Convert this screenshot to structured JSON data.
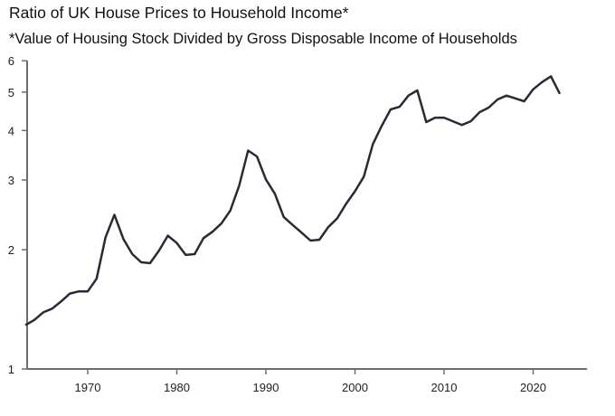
{
  "chart_data": {
    "type": "line",
    "title": "Ratio of UK House Prices to Household Income*",
    "subtitle": "*Value of Housing Stock Divided by Gross Disposable Income of Households",
    "xlabel": "",
    "ylabel": "",
    "yscale": "log",
    "ylim": [
      1,
      6
    ],
    "xlim": [
      1963,
      2025
    ],
    "yticks": [
      "1",
      "2",
      "3",
      "4",
      "5",
      "6"
    ],
    "xticks": [
      "1970",
      "1980",
      "1990",
      "2000",
      "2010",
      "2020"
    ],
    "grid": false,
    "line_color": "#2a2a35",
    "axis_color": "#6e6e6e",
    "series": [
      {
        "name": "Ratio of UK House Prices to Household Income",
        "x": [
          1963,
          1964,
          1965,
          1966,
          1967,
          1968,
          1969,
          1970,
          1971,
          1972,
          1973,
          1974,
          1975,
          1976,
          1977,
          1978,
          1979,
          1980,
          1981,
          1982,
          1983,
          1984,
          1985,
          1986,
          1987,
          1988,
          1989,
          1990,
          1991,
          1992,
          1993,
          1994,
          1995,
          1996,
          1997,
          1998,
          1999,
          2000,
          2001,
          2002,
          2003,
          2004,
          2005,
          2006,
          2007,
          2008,
          2009,
          2010,
          2011,
          2012,
          2013,
          2014,
          2015,
          2016,
          2017,
          2018,
          2019,
          2020,
          2021,
          2022,
          2023
        ],
        "values": [
          1.29,
          1.33,
          1.39,
          1.42,
          1.48,
          1.55,
          1.57,
          1.57,
          1.69,
          2.15,
          2.45,
          2.13,
          1.95,
          1.86,
          1.85,
          1.99,
          2.17,
          2.08,
          1.94,
          1.95,
          2.14,
          2.22,
          2.33,
          2.51,
          2.9,
          3.56,
          3.44,
          3.01,
          2.77,
          2.42,
          2.31,
          2.21,
          2.11,
          2.12,
          2.28,
          2.4,
          2.61,
          2.81,
          3.06,
          3.69,
          4.11,
          4.52,
          4.59,
          4.9,
          5.05,
          4.2,
          4.31,
          4.31,
          4.22,
          4.13,
          4.22,
          4.45,
          4.57,
          4.79,
          4.9,
          4.82,
          4.74,
          5.08,
          5.3,
          5.48,
          4.95
        ]
      }
    ]
  }
}
